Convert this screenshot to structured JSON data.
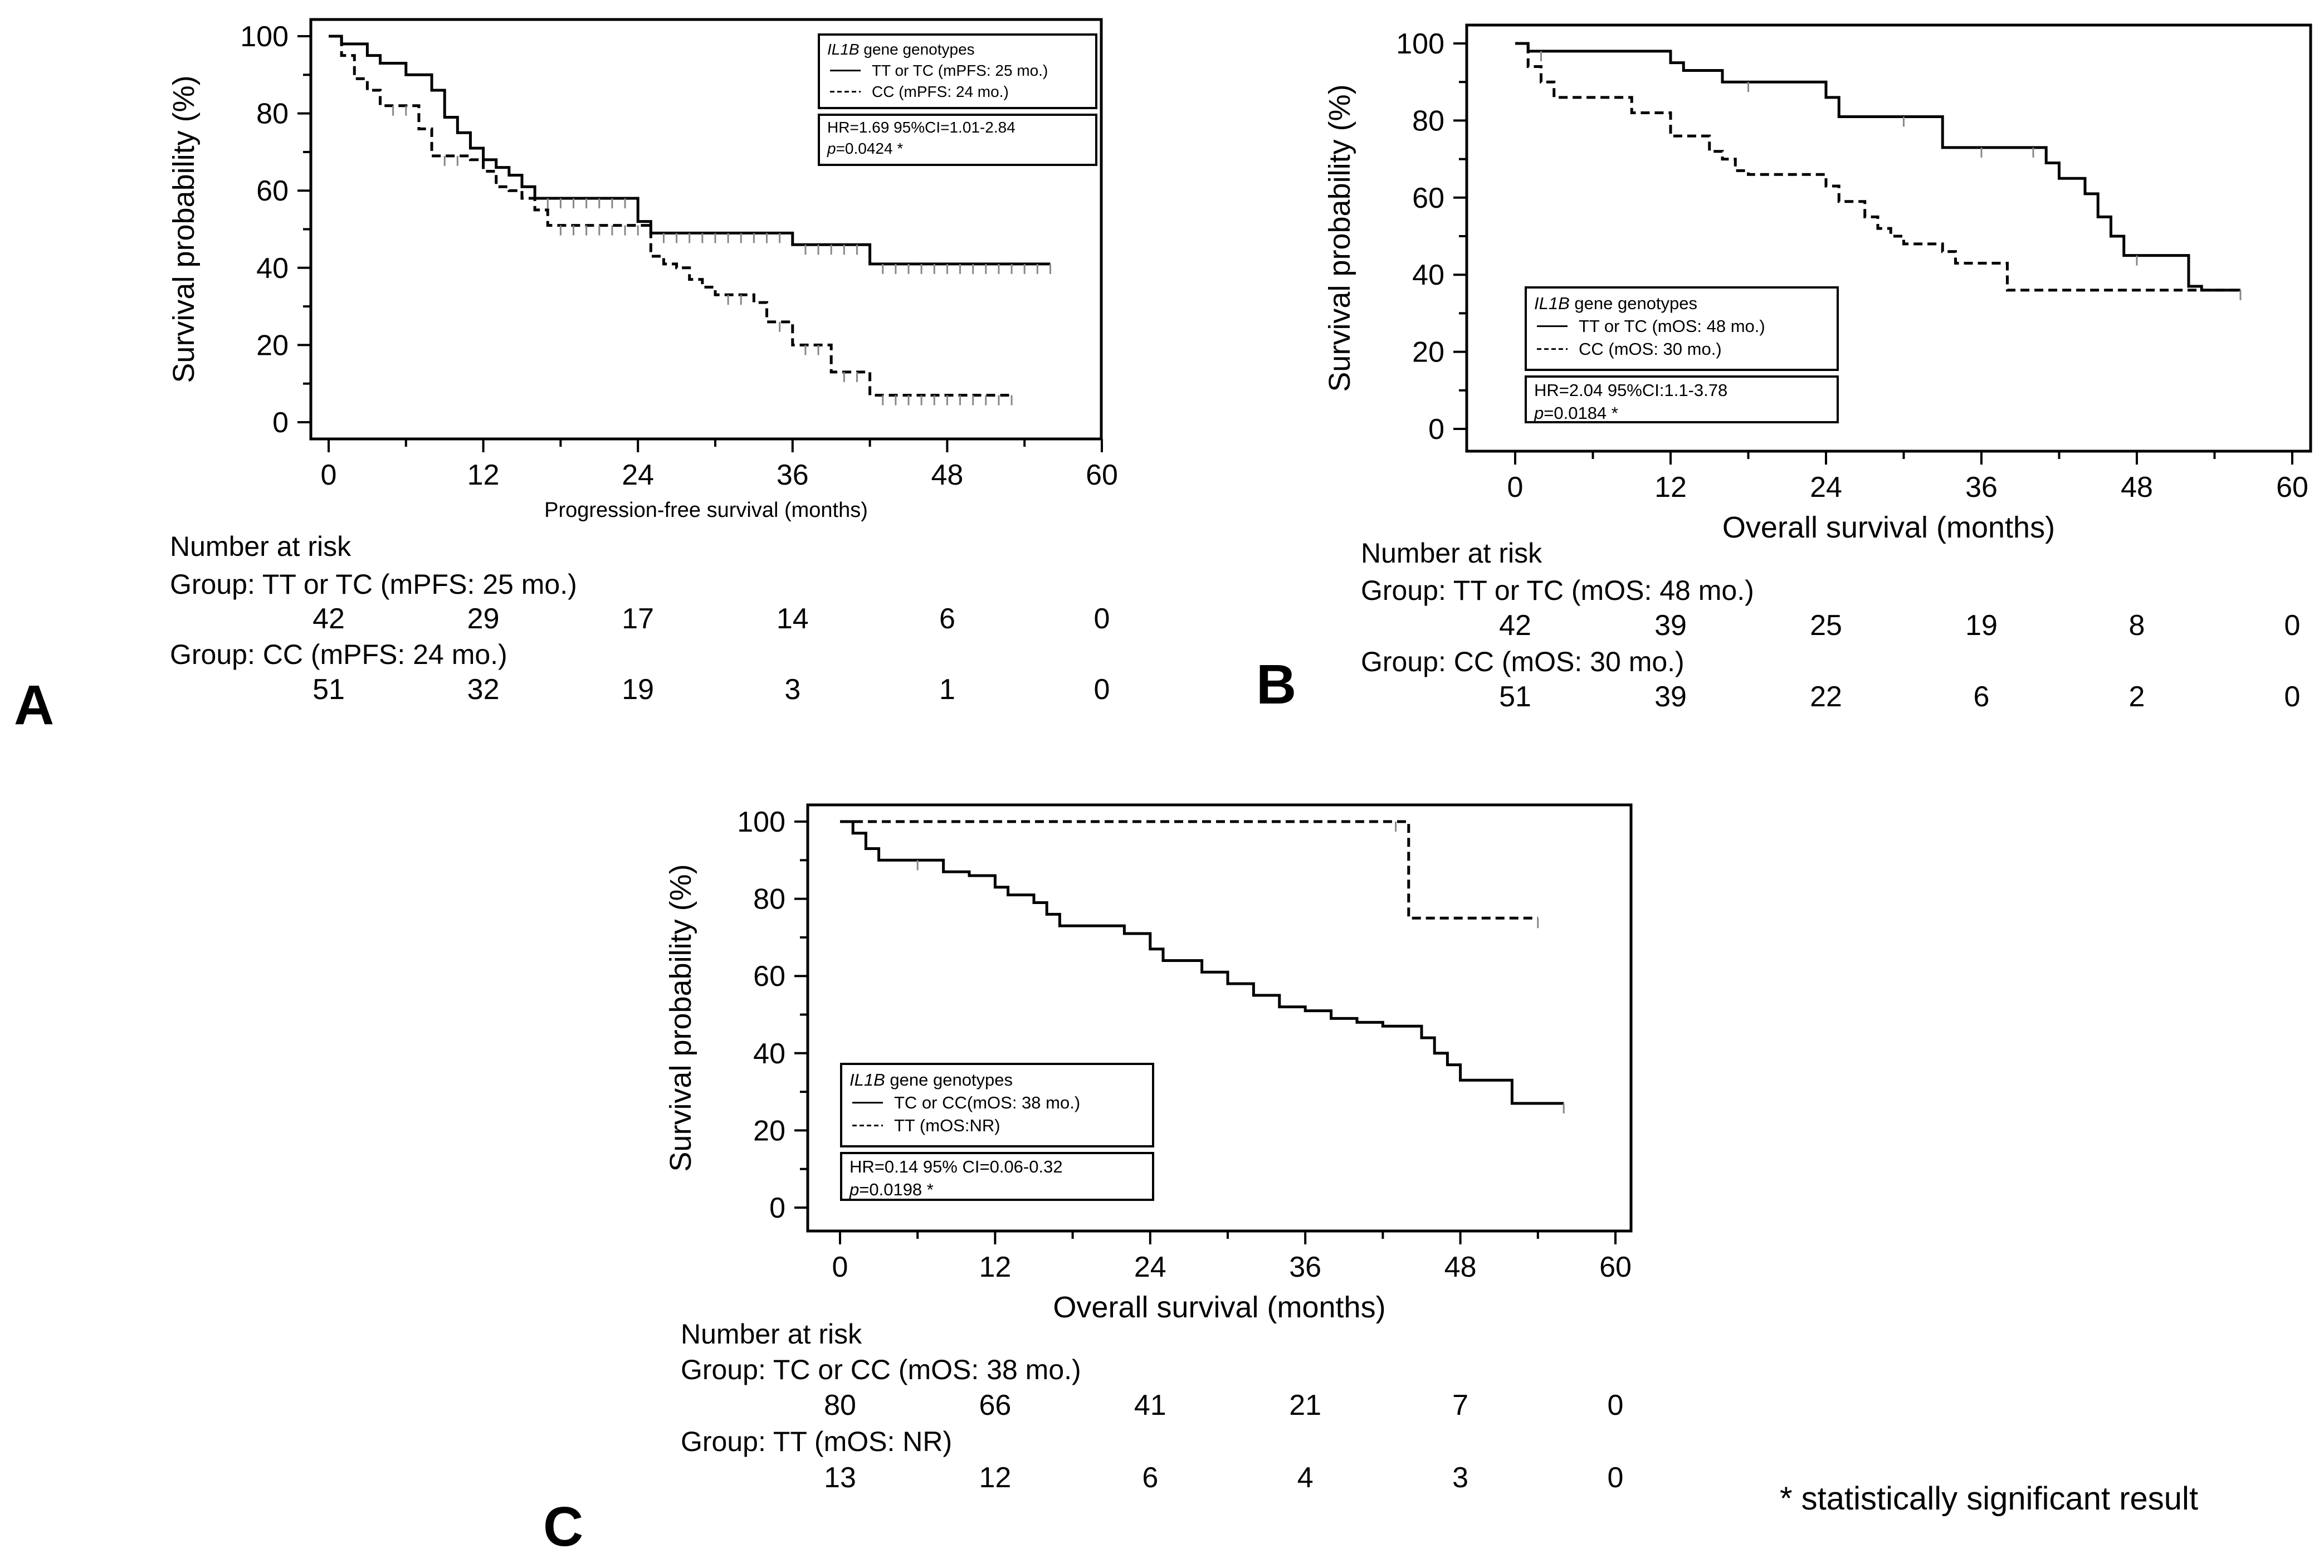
{
  "footnote": "* statistically significant result",
  "chart_data": [
    {
      "type": "line",
      "panel_label": "A",
      "xlabel": "Progression-free survival (months)",
      "ylabel": "Survival probability (%)",
      "xlim": [
        0,
        60
      ],
      "ylim": [
        0,
        100
      ],
      "xticks": [
        "0",
        "12",
        "24",
        "36",
        "48",
        "60"
      ],
      "yticks": [
        "0",
        "20",
        "40",
        "60",
        "80",
        "100"
      ],
      "legend": {
        "position": "top-right",
        "title_italic": "IL1B",
        "title_rest": " gene genotypes",
        "entries": [
          "TT or TC (mPFS: 25 mo.)",
          "CC (mPFS: 24 mo.)"
        ],
        "stat_line1": "HR=1.69 95%CI=1.01-2.84",
        "stat_p_italic": "p",
        "stat_p_rest": "=0.0424 *"
      },
      "series": [
        {
          "name": "TT or TC (mPFS: 25 mo.)",
          "style": "solid",
          "x": [
            0,
            1,
            3,
            4,
            6,
            8,
            9,
            10,
            11,
            12,
            13,
            14,
            15,
            16,
            17,
            18,
            19,
            20,
            21,
            22,
            23,
            24,
            25,
            26,
            27,
            28,
            29,
            30,
            31,
            32,
            33,
            34,
            35,
            36,
            37,
            38,
            39,
            40,
            41,
            42,
            43,
            44,
            45,
            46,
            47,
            48,
            49,
            50,
            51,
            52,
            53,
            54,
            55,
            56
          ],
          "y": [
            100,
            98,
            95,
            93,
            90,
            86,
            79,
            75,
            71,
            68,
            66,
            64,
            61,
            58,
            58,
            58,
            58,
            58,
            58,
            58,
            58,
            52,
            49,
            49,
            49,
            49,
            49,
            49,
            49,
            49,
            49,
            49,
            49,
            46,
            46,
            46,
            46,
            46,
            46,
            41,
            41,
            41,
            41,
            41,
            41,
            41,
            41,
            41,
            41,
            41,
            41,
            41,
            41,
            41
          ]
        },
        {
          "name": "CC (mPFS: 24 mo.)",
          "style": "dashed",
          "x": [
            0,
            1,
            2,
            3,
            4,
            5,
            6,
            7,
            8,
            9,
            10,
            11,
            12,
            13,
            14,
            15,
            16,
            17,
            18,
            19,
            20,
            21,
            22,
            23,
            24,
            25,
            26,
            27,
            28,
            29,
            30,
            31,
            32,
            33,
            34,
            35,
            36,
            37,
            38,
            39,
            40,
            41,
            42,
            43,
            44,
            45,
            46,
            47,
            48,
            49,
            50,
            51,
            52,
            53
          ],
          "y": [
            100,
            95,
            89,
            86,
            82,
            82,
            82,
            76,
            69,
            69,
            69,
            68,
            65,
            61,
            60,
            58,
            55,
            51,
            51,
            51,
            51,
            51,
            51,
            51,
            51,
            43,
            41,
            40,
            37,
            35,
            33,
            33,
            33,
            31,
            26,
            26,
            20,
            20,
            20,
            13,
            13,
            13,
            7,
            7,
            7,
            7,
            7,
            7,
            7,
            7,
            7,
            7,
            7,
            7
          ]
        }
      ],
      "risk_table": {
        "heading": "Number at risk",
        "groups": [
          {
            "label": "Group: TT or TC (mPFS: 25 mo.)",
            "values": [
              "42",
              "29",
              "17",
              "14",
              "6",
              "0"
            ]
          },
          {
            "label": "Group: CC (mPFS: 24 mo.)",
            "values": [
              "51",
              "32",
              "19",
              "3",
              "1",
              "0"
            ]
          }
        ]
      }
    },
    {
      "type": "line",
      "panel_label": "B",
      "xlabel": "Overall survival (months)",
      "ylabel": "Survival probability (%)",
      "xlim": [
        0,
        60
      ],
      "ylim": [
        0,
        100
      ],
      "xticks": [
        "0",
        "12",
        "24",
        "36",
        "48",
        "60"
      ],
      "yticks": [
        "0",
        "20",
        "40",
        "60",
        "80",
        "100"
      ],
      "legend": {
        "position": "bottom-left",
        "title_italic": "IL1B",
        "title_rest": " gene genotypes",
        "entries": [
          "TT or TC (mOS: 48 mo.)",
          "CC (mOS: 30 mo.)"
        ],
        "stat_line1": "HR=2.04 95%CI:1.1-3.78",
        "stat_p_italic": "p",
        "stat_p_rest": "=0.0184 *"
      },
      "series": [
        {
          "name": "TT or TC (mOS: 48 mo.)",
          "style": "solid",
          "x": [
            0,
            1,
            2,
            12,
            13,
            16,
            18,
            24,
            25,
            30,
            33,
            36,
            40,
            41,
            42,
            44,
            45,
            46,
            47,
            48,
            52,
            53,
            56
          ],
          "y": [
            100,
            98,
            98,
            95,
            93,
            90,
            90,
            86,
            81,
            81,
            73,
            73,
            73,
            69,
            65,
            61,
            55,
            50,
            45,
            45,
            37,
            36,
            36
          ]
        },
        {
          "name": "CC (mOS: 30 mo.)",
          "style": "dashed",
          "x": [
            0,
            1,
            2,
            3,
            9,
            12,
            15,
            16,
            17,
            18,
            24,
            25,
            27,
            28,
            29,
            30,
            33,
            34,
            38,
            56
          ],
          "y": [
            100,
            94,
            90,
            86,
            82,
            76,
            72,
            70,
            67,
            66,
            63,
            59,
            55,
            52,
            50,
            48,
            46,
            43,
            36,
            36
          ]
        }
      ],
      "risk_table": {
        "heading": "Number at risk",
        "groups": [
          {
            "label": "Group: TT or TC (mOS: 48 mo.)",
            "values": [
              "42",
              "39",
              "25",
              "19",
              "8",
              "0"
            ]
          },
          {
            "label": "Group: CC (mOS: 30 mo.)",
            "values": [
              "51",
              "39",
              "22",
              "6",
              "2",
              "0"
            ]
          }
        ]
      }
    },
    {
      "type": "line",
      "panel_label": "C",
      "xlabel": "Overall survival (months)",
      "ylabel": "Survival probability (%)",
      "xlim": [
        0,
        60
      ],
      "ylim": [
        0,
        100
      ],
      "xticks": [
        "0",
        "12",
        "24",
        "36",
        "48",
        "60"
      ],
      "yticks": [
        "0",
        "20",
        "40",
        "60",
        "80",
        "100"
      ],
      "legend": {
        "position": "bottom-left",
        "title_italic": "IL1B",
        "title_rest": " gene genotypes",
        "entries": [
          "TC or CC(mOS: 38 mo.)",
          "TT (mOS:NR)"
        ],
        "stat_line1": "HR=0.14 95% CI=0.06-0.32",
        "stat_p_italic": "p",
        "stat_p_rest": "=0.0198 *"
      },
      "series": [
        {
          "name": "TC or CC(mOS: 38 mo.)",
          "style": "solid",
          "x": [
            0,
            1,
            2,
            3,
            6,
            8,
            10,
            12,
            13,
            15,
            16,
            17,
            22,
            24,
            25,
            28,
            30,
            32,
            34,
            36,
            38,
            40,
            42,
            45,
            46,
            47,
            48,
            52,
            56
          ],
          "y": [
            100,
            97,
            93,
            90,
            90,
            87,
            86,
            83,
            81,
            79,
            76,
            73,
            71,
            67,
            64,
            61,
            58,
            55,
            52,
            51,
            49,
            48,
            47,
            44,
            40,
            37,
            33,
            27,
            27
          ]
        },
        {
          "name": "TT (mOS:NR)",
          "style": "dashed",
          "x": [
            0,
            43,
            44,
            54
          ],
          "y": [
            100,
            100,
            75,
            75
          ]
        }
      ],
      "risk_table": {
        "heading": "Number at risk",
        "groups": [
          {
            "label": "Group: TC or CC (mOS: 38 mo.)",
            "values": [
              "80",
              "66",
              "41",
              "21",
              "7",
              "0"
            ]
          },
          {
            "label": "Group: TT (mOS: NR)",
            "values": [
              "13",
              "12",
              "6",
              "4",
              "3",
              "0"
            ]
          }
        ]
      }
    }
  ]
}
